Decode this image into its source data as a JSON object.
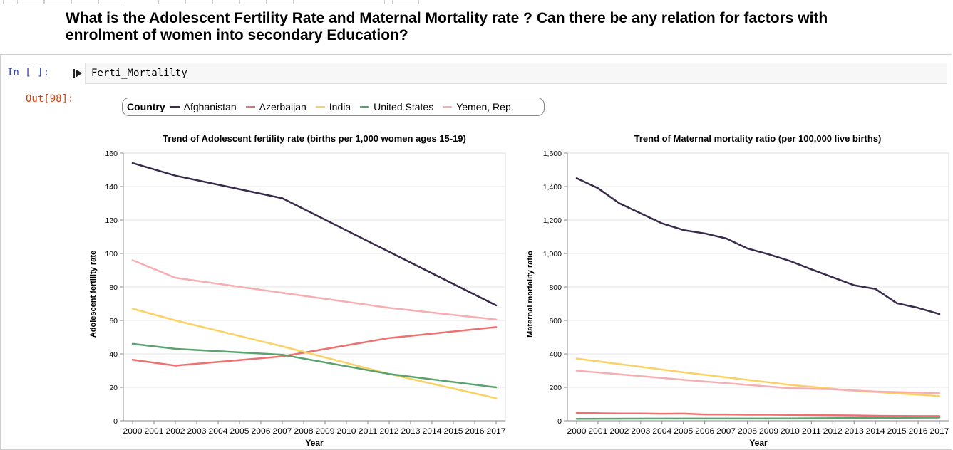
{
  "toolbar": {},
  "heading": {
    "line1": "What is the Adolescent Fertility Rate and Maternal Mortality rate ? Can there be any relation for factors with",
    "line2": "enrolment of women into secondary Education?"
  },
  "cell": {
    "in_prompt": "In [ ]:",
    "out_prompt": "Out[98]:",
    "code": "Ferti_Mortalilty",
    "run_icon": "run-cell-icon"
  },
  "legend": {
    "title": "Country",
    "items": [
      {
        "label": "Afghanistan",
        "color": "#3a2a4d"
      },
      {
        "label": "Azerbaijan",
        "color": "#f07070"
      },
      {
        "label": "India",
        "color": "#fbd163"
      },
      {
        "label": "United States",
        "color": "#5aa36f"
      },
      {
        "label": "Yemen, Rep.",
        "color": "#f6aeb2"
      }
    ]
  },
  "chart_data": [
    {
      "type": "line",
      "title": "Trend of Adolescent fertility rate (births per 1,000 women ages 15-19)",
      "xlabel": "Year",
      "ylabel": "Adolescent fertility rate",
      "x": [
        2000,
        2001,
        2002,
        2003,
        2004,
        2005,
        2006,
        2007,
        2008,
        2009,
        2010,
        2011,
        2012,
        2013,
        2014,
        2015,
        2016,
        2017
      ],
      "ylim": [
        0,
        160
      ],
      "yticks": [
        "0",
        "20",
        "40",
        "60",
        "80",
        "100",
        "120",
        "140",
        "160"
      ],
      "grid": true,
      "series": [
        {
          "name": "Afghanistan",
          "points": [
            [
              2000,
              154
            ],
            [
              2002,
              146.5
            ],
            [
              2007,
              133
            ],
            [
              2017,
              69
            ]
          ]
        },
        {
          "name": "Azerbaijan",
          "points": [
            [
              2000,
              36.5
            ],
            [
              2002,
              33
            ],
            [
              2007,
              38.5
            ],
            [
              2012,
              49.5
            ],
            [
              2017,
              56
            ]
          ]
        },
        {
          "name": "India",
          "points": [
            [
              2000,
              67
            ],
            [
              2002,
              60
            ],
            [
              2007,
              44.5
            ],
            [
              2012,
              28
            ],
            [
              2017,
              13.5
            ]
          ]
        },
        {
          "name": "United States",
          "points": [
            [
              2000,
              46
            ],
            [
              2002,
              43
            ],
            [
              2007,
              39.5
            ],
            [
              2012,
              28
            ],
            [
              2017,
              20
            ]
          ]
        },
        {
          "name": "Yemen, Rep.",
          "points": [
            [
              2000,
              96
            ],
            [
              2002,
              85.5
            ],
            [
              2007,
              76.5
            ],
            [
              2012,
              67.5
            ],
            [
              2017,
              60.5
            ]
          ]
        }
      ]
    },
    {
      "type": "line",
      "title": "Trend of Maternal mortality ratio (per 100,000 live births)",
      "xlabel": "Year",
      "ylabel": "Maternal mortality ratio",
      "x": [
        2000,
        2001,
        2002,
        2003,
        2004,
        2005,
        2006,
        2007,
        2008,
        2009,
        2010,
        2011,
        2012,
        2013,
        2014,
        2015,
        2016,
        2017
      ],
      "ylim": [
        0,
        1600
      ],
      "yticks": [
        "0",
        "200",
        "400",
        "600",
        "800",
        "1,000",
        "1,200",
        "1,400",
        "1,600"
      ],
      "grid": true,
      "series": [
        {
          "name": "Afghanistan",
          "points": [
            [
              2000,
              1450
            ],
            [
              2001,
              1390
            ],
            [
              2002,
              1300
            ],
            [
              2003,
              1240
            ],
            [
              2004,
              1180
            ],
            [
              2005,
              1140
            ],
            [
              2006,
              1120
            ],
            [
              2007,
              1090
            ],
            [
              2008,
              1030
            ],
            [
              2009,
              995
            ],
            [
              2010,
              955
            ],
            [
              2011,
              905
            ],
            [
              2012,
              858
            ],
            [
              2013,
              810
            ],
            [
              2014,
              788
            ],
            [
              2015,
              703
            ],
            [
              2016,
              675
            ],
            [
              2017,
              638
            ]
          ]
        },
        {
          "name": "Azerbaijan",
          "points": [
            [
              2000,
              48
            ],
            [
              2001,
              45
            ],
            [
              2002,
              44
            ],
            [
              2003,
              44
            ],
            [
              2004,
              42
            ],
            [
              2005,
              43
            ],
            [
              2006,
              38
            ],
            [
              2007,
              38
            ],
            [
              2008,
              36
            ],
            [
              2009,
              36
            ],
            [
              2010,
              35
            ],
            [
              2011,
              34
            ],
            [
              2012,
              33
            ],
            [
              2013,
              32
            ],
            [
              2014,
              30
            ],
            [
              2015,
              29
            ],
            [
              2016,
              28
            ],
            [
              2017,
              28
            ]
          ]
        },
        {
          "name": "India",
          "points": [
            [
              2000,
              372
            ],
            [
              2005,
              290
            ],
            [
              2010,
              215
            ],
            [
              2013,
              180
            ],
            [
              2017,
              148
            ]
          ]
        },
        {
          "name": "United States",
          "points": [
            [
              2000,
              12
            ],
            [
              2005,
              13
            ],
            [
              2010,
              14
            ],
            [
              2014,
              17
            ],
            [
              2017,
              19
            ]
          ]
        },
        {
          "name": "Yemen, Rep.",
          "points": [
            [
              2000,
              300
            ],
            [
              2005,
              245
            ],
            [
              2010,
              195
            ],
            [
              2012,
              188
            ],
            [
              2014,
              175
            ],
            [
              2017,
              165
            ]
          ]
        }
      ]
    }
  ]
}
